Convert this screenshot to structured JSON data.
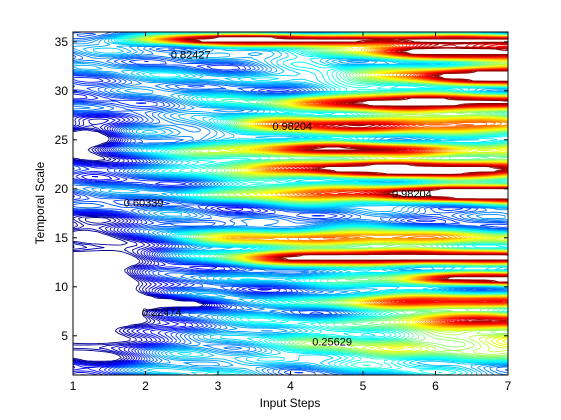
{
  "chart_data": {
    "type": "contour",
    "title": "",
    "xlabel": "Input Steps",
    "ylabel": "Temporal Scale",
    "xlim": [
      1,
      7
    ],
    "ylim": [
      1,
      36
    ],
    "x_ticks": [
      1,
      2,
      3,
      4,
      5,
      6,
      7
    ],
    "y_ticks": [
      5,
      10,
      15,
      20,
      25,
      30,
      35
    ],
    "grid": false,
    "legend": "none",
    "colormap": "jet",
    "contour_labels": [
      {
        "text": "0.82427",
        "x": 2.35,
        "y": 33.3
      },
      {
        "text": "0.98204",
        "x": 3.75,
        "y": 26.0
      },
      {
        "text": "0.98204",
        "x": 5.4,
        "y": 19.1
      },
      {
        "text": "0.60339",
        "x": 1.7,
        "y": 18.2
      },
      {
        "text": "0.22474",
        "x": 1.95,
        "y": 7.0
      },
      {
        "text": "0.25629",
        "x": 4.3,
        "y": 4.0
      }
    ],
    "bands": [
      {
        "y": 1.5,
        "sigma": 1.0,
        "amp": 0.15,
        "x0": 1.0,
        "peak_x": 1.0,
        "grow": 0.0
      },
      {
        "y": 4.0,
        "sigma": 1.6,
        "amp": 0.3,
        "x0": 3.0,
        "peak_x": 6.2,
        "grow": 0.35
      },
      {
        "y": 6.5,
        "sigma": 0.8,
        "amp": 0.55,
        "x0": 5.0,
        "peak_x": 6.8,
        "grow": 0.25
      },
      {
        "y": 8.5,
        "sigma": 0.7,
        "amp": 0.6,
        "x0": 4.5,
        "peak_x": 6.0,
        "grow": 0.25
      },
      {
        "y": 10.8,
        "sigma": 0.6,
        "amp": 0.8,
        "x0": 5.5,
        "peak_x": 6.8,
        "grow": 0.3
      },
      {
        "y": 13.0,
        "sigma": 0.7,
        "amp": 0.95,
        "x0": 3.5,
        "peak_x": 4.8,
        "grow": 0.3
      },
      {
        "y": 15.0,
        "sigma": 0.8,
        "amp": 0.55,
        "x0": 2.5,
        "peak_x": 4.5,
        "grow": 0.2
      },
      {
        "y": 19.5,
        "sigma": 0.8,
        "amp": 1.0,
        "x0": 3.2,
        "peak_x": 7.0,
        "grow": 0.25
      },
      {
        "y": 22.0,
        "sigma": 0.8,
        "amp": 0.95,
        "x0": 3.0,
        "peak_x": 5.5,
        "grow": 0.2
      },
      {
        "y": 24.0,
        "sigma": 0.7,
        "amp": 0.7,
        "x0": 2.5,
        "peak_x": 4.5,
        "grow": 0.15
      },
      {
        "y": 26.5,
        "sigma": 0.9,
        "amp": 0.65,
        "x0": 3.0,
        "peak_x": 5.0,
        "grow": 0.2
      },
      {
        "y": 28.8,
        "sigma": 0.8,
        "amp": 0.85,
        "x0": 4.0,
        "peak_x": 5.5,
        "grow": 0.25
      },
      {
        "y": 31.5,
        "sigma": 0.9,
        "amp": 0.9,
        "x0": 5.5,
        "peak_x": 7.0,
        "grow": 0.3
      },
      {
        "y": 34.0,
        "sigma": 0.8,
        "amp": 0.8,
        "x0": 5.0,
        "peak_x": 6.0,
        "grow": 0.25
      },
      {
        "y": 35.2,
        "sigma": 0.5,
        "amp": 1.0,
        "x0": 2.0,
        "peak_x": 3.3,
        "grow": 0.3
      }
    ],
    "low_regions": [
      {
        "x": 1.3,
        "y": 9.0,
        "sx": 0.8,
        "sy": 7.0,
        "amp": 0.45
      },
      {
        "x": 1.2,
        "y": 25.0,
        "sx": 0.5,
        "sy": 2.5,
        "amp": 0.3
      },
      {
        "x": 2.5,
        "y": 8.3,
        "sx": 0.5,
        "sy": 0.6,
        "amp": 0.35
      }
    ],
    "levels": {
      "count": 60,
      "min": 0.0,
      "max": 1.0
    }
  }
}
